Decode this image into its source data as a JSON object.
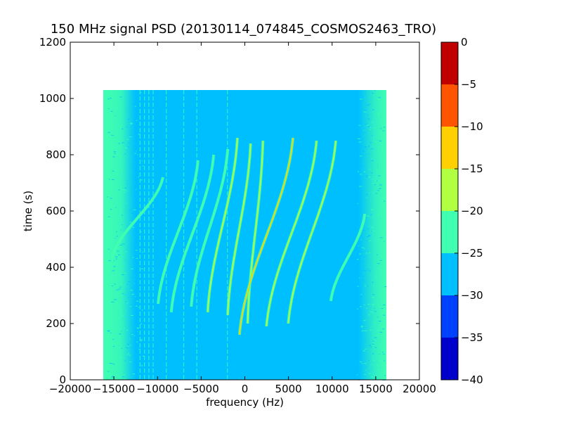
{
  "chart_data": {
    "type": "heatmap",
    "title": "150 MHz signal PSD (20130114_074845_COSMOS2463_TRO)",
    "xlabel": "frequency (Hz)",
    "ylabel": "time (s)",
    "xlim": [
      -20000,
      20000
    ],
    "ylim": [
      0,
      1200
    ],
    "x_ticks": [
      -20000,
      -15000,
      -10000,
      -5000,
      0,
      5000,
      10000,
      15000,
      20000
    ],
    "y_ticks": [
      0,
      200,
      400,
      600,
      800,
      1000,
      1200
    ],
    "data_extent": {
      "x": [
        -16200,
        16200
      ],
      "y": [
        0,
        1030
      ]
    },
    "colorbar": {
      "range": [
        -40,
        0
      ],
      "ticks": [
        0,
        -5,
        -10,
        -15,
        -20,
        -25,
        -30,
        -35,
        -40
      ],
      "levels": [
        {
          "from": -40,
          "to": -35,
          "color": "#0000cc"
        },
        {
          "from": -35,
          "to": -30,
          "color": "#0040ff"
        },
        {
          "from": -30,
          "to": -25,
          "color": "#00bfff"
        },
        {
          "from": -25,
          "to": -20,
          "color": "#40ffb0"
        },
        {
          "from": -20,
          "to": -15,
          "color": "#b0ff40"
        },
        {
          "from": -15,
          "to": -10,
          "color": "#ffd000"
        },
        {
          "from": -10,
          "to": -5,
          "color": "#ff5500"
        },
        {
          "from": -5,
          "to": 0,
          "color": "#c00000"
        }
      ]
    },
    "background_level_color": "#00bfff",
    "edge_band_color": "#40ffb0",
    "vertical_lines_hz": [
      -12000,
      -11500,
      -11000,
      -10500,
      -9000,
      -7000,
      -5500,
      -2000
    ],
    "tracks": [
      {
        "f_start": -5300,
        "f_end": -10000,
        "t_start": 780,
        "t_end": 270,
        "peak_color": "#40ffb0"
      },
      {
        "f_start": -3500,
        "f_end": -8500,
        "t_start": 800,
        "t_end": 240,
        "peak_color": "#40ffb0"
      },
      {
        "f_start": -1900,
        "f_end": -6200,
        "t_start": 820,
        "t_end": 260,
        "peak_color": "#40ffb0"
      },
      {
        "f_start": -800,
        "f_end": -4300,
        "t_start": 860,
        "t_end": 240,
        "peak_color": "#b0ff40"
      },
      {
        "f_start": 700,
        "f_end": -2000,
        "t_start": 840,
        "t_end": 230,
        "peak_color": "#b0ff40"
      },
      {
        "f_start": 2100,
        "f_end": 300,
        "t_start": 850,
        "t_end": 200,
        "peak_color": "#b0ff40"
      },
      {
        "f_start": 5600,
        "f_end": -700,
        "t_start": 860,
        "t_end": 160,
        "peak_color": "#ffd000"
      },
      {
        "f_start": 8300,
        "f_end": 2400,
        "t_start": 850,
        "t_end": 190,
        "peak_color": "#b0ff40"
      },
      {
        "f_start": 10500,
        "f_end": 4900,
        "t_start": 850,
        "t_end": 200,
        "peak_color": "#b0ff40"
      },
      {
        "f_start": 13800,
        "f_end": 9800,
        "t_start": 590,
        "t_end": 280,
        "peak_color": "#40ffb0"
      },
      {
        "f_start": -9300,
        "f_end": -15300,
        "t_start": 720,
        "t_end": 430,
        "peak_color": "#40ffb0"
      }
    ]
  }
}
